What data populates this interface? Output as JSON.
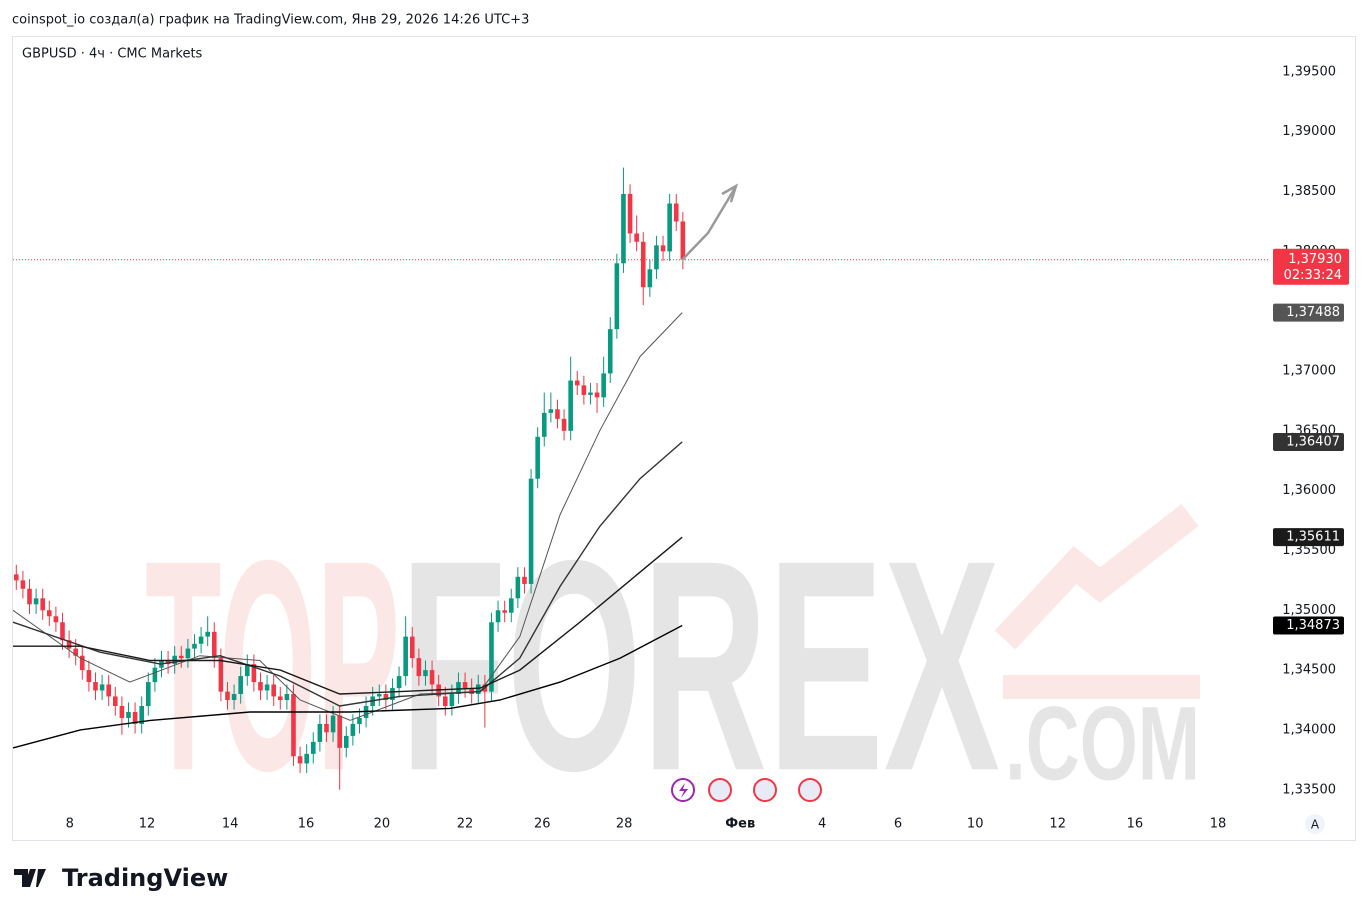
{
  "chart_data": {
    "type": "candlestick",
    "header": "coinspot_io создал(а) график на TradingView.com, Янв 29, 2026 14:26 UTC+3",
    "title": "GBPUSD · 4ч · CMC Markets",
    "logo": "TradingView",
    "auto_button": "A",
    "watermark": {
      "top": "TOP",
      "forex": "FOREX",
      "com": ".COM"
    },
    "ylim": [
      1.3308,
      1.398
    ],
    "yticks": [
      {
        "value": 1.395,
        "label": "1,39500"
      },
      {
        "value": 1.39,
        "label": "1,39000"
      },
      {
        "value": 1.385,
        "label": "1,38500"
      },
      {
        "value": 1.38,
        "label": "1,38000"
      },
      {
        "value": 1.375,
        "label": "1,37500"
      },
      {
        "value": 1.37,
        "label": "1,37000"
      },
      {
        "value": 1.365,
        "label": "1,36500"
      },
      {
        "value": 1.36,
        "label": "1,36000"
      },
      {
        "value": 1.355,
        "label": "1,35500"
      },
      {
        "value": 1.35,
        "label": "1,35000"
      },
      {
        "value": 1.345,
        "label": "1,34500"
      },
      {
        "value": 1.34,
        "label": "1,34000"
      },
      {
        "value": 1.335,
        "label": "1,33500"
      }
    ],
    "xlim": [
      0,
      193.5
    ],
    "xticks": [
      {
        "value": 8.6,
        "label": "8"
      },
      {
        "value": 20.3,
        "label": "12"
      },
      {
        "value": 32.9,
        "label": "14"
      },
      {
        "value": 44.4,
        "label": "16"
      },
      {
        "value": 55.9,
        "label": "20"
      },
      {
        "value": 68.5,
        "label": "22"
      },
      {
        "value": 80.2,
        "label": "26"
      },
      {
        "value": 92.6,
        "label": "28"
      },
      {
        "value": 110.2,
        "label": "Фев"
      },
      {
        "value": 122.6,
        "label": "4"
      },
      {
        "value": 134.1,
        "label": "6"
      },
      {
        "value": 145.8,
        "label": "10"
      },
      {
        "value": 158.3,
        "label": "12"
      },
      {
        "value": 170.0,
        "label": "16"
      },
      {
        "value": 182.6,
        "label": "18"
      }
    ],
    "up_color": "#089981",
    "down_color": "#f23645",
    "ohlc": [
      [
        1.353,
        1.3538,
        1.3517,
        1.3525
      ],
      [
        1.3525,
        1.3533,
        1.351,
        1.3518
      ],
      [
        1.3518,
        1.3526,
        1.3497,
        1.3505
      ],
      [
        1.3505,
        1.3518,
        1.3497,
        1.351
      ],
      [
        1.351,
        1.3518,
        1.3492,
        1.35
      ],
      [
        1.35,
        1.3508,
        1.3487,
        1.3495
      ],
      [
        1.3495,
        1.3503,
        1.3482,
        1.349
      ],
      [
        1.349,
        1.3498,
        1.3467,
        1.3475
      ],
      [
        1.3475,
        1.3483,
        1.346,
        1.3468
      ],
      [
        1.3468,
        1.3476,
        1.3454,
        1.3462
      ],
      [
        1.3462,
        1.347,
        1.3442,
        1.345
      ],
      [
        1.345,
        1.3458,
        1.3432,
        1.344
      ],
      [
        1.344,
        1.3448,
        1.3425,
        1.3433
      ],
      [
        1.3433,
        1.3446,
        1.3425,
        1.3438
      ],
      [
        1.3438,
        1.3446,
        1.342,
        1.3428
      ],
      [
        1.3428,
        1.3436,
        1.3412,
        1.342
      ],
      [
        1.342,
        1.3428,
        1.3396,
        1.341
      ],
      [
        1.341,
        1.3423,
        1.3402,
        1.3415
      ],
      [
        1.3415,
        1.3423,
        1.3397,
        1.3405
      ],
      [
        1.3405,
        1.3428,
        1.3397,
        1.342
      ],
      [
        1.342,
        1.3448,
        1.3412,
        1.344
      ],
      [
        1.344,
        1.346,
        1.3432,
        1.3452
      ],
      [
        1.3452,
        1.3466,
        1.3444,
        1.3458
      ],
      [
        1.3458,
        1.3466,
        1.3447,
        1.3455
      ],
      [
        1.3455,
        1.347,
        1.3447,
        1.3462
      ],
      [
        1.3462,
        1.347,
        1.3452,
        1.346
      ],
      [
        1.346,
        1.3476,
        1.3452,
        1.3468
      ],
      [
        1.3468,
        1.348,
        1.346,
        1.3472
      ],
      [
        1.3472,
        1.3486,
        1.3464,
        1.3478
      ],
      [
        1.3478,
        1.3495,
        1.347,
        1.3482
      ],
      [
        1.3482,
        1.349,
        1.3452,
        1.346
      ],
      [
        1.346,
        1.3468,
        1.3424,
        1.3432
      ],
      [
        1.3432,
        1.344,
        1.3417,
        1.3425
      ],
      [
        1.3425,
        1.3438,
        1.3417,
        1.343
      ],
      [
        1.343,
        1.3453,
        1.3422,
        1.3445
      ],
      [
        1.3445,
        1.3463,
        1.3437,
        1.3455
      ],
      [
        1.3455,
        1.3463,
        1.3432,
        1.344
      ],
      [
        1.344,
        1.3448,
        1.3425,
        1.3433
      ],
      [
        1.3433,
        1.3446,
        1.3425,
        1.3438
      ],
      [
        1.3438,
        1.3446,
        1.342,
        1.3428
      ],
      [
        1.3428,
        1.3436,
        1.3417,
        1.3425
      ],
      [
        1.3425,
        1.3438,
        1.3417,
        1.343
      ],
      [
        1.343,
        1.3438,
        1.337,
        1.3378
      ],
      [
        1.3378,
        1.3386,
        1.3364,
        1.3372
      ],
      [
        1.3372,
        1.3388,
        1.3364,
        1.338
      ],
      [
        1.338,
        1.3398,
        1.3372,
        1.339
      ],
      [
        1.339,
        1.3413,
        1.3382,
        1.3405
      ],
      [
        1.3405,
        1.3413,
        1.339,
        1.3398
      ],
      [
        1.3398,
        1.342,
        1.339,
        1.3412
      ],
      [
        1.3412,
        1.342,
        1.335,
        1.3385
      ],
      [
        1.3385,
        1.3403,
        1.3377,
        1.3395
      ],
      [
        1.3395,
        1.3413,
        1.3387,
        1.3405
      ],
      [
        1.3405,
        1.3418,
        1.3397,
        1.341
      ],
      [
        1.341,
        1.3428,
        1.3402,
        1.342
      ],
      [
        1.342,
        1.3436,
        1.3412,
        1.3428
      ],
      [
        1.3428,
        1.3438,
        1.342,
        1.343
      ],
      [
        1.343,
        1.3438,
        1.3417,
        1.3425
      ],
      [
        1.3425,
        1.3443,
        1.3417,
        1.3435
      ],
      [
        1.3435,
        1.3453,
        1.3427,
        1.3445
      ],
      [
        1.3445,
        1.3495,
        1.3437,
        1.3478
      ],
      [
        1.3478,
        1.3486,
        1.3452,
        1.346
      ],
      [
        1.346,
        1.3468,
        1.3437,
        1.3445
      ],
      [
        1.3445,
        1.3458,
        1.3437,
        1.345
      ],
      [
        1.345,
        1.3458,
        1.343,
        1.3438
      ],
      [
        1.3438,
        1.3446,
        1.342,
        1.3428
      ],
      [
        1.3428,
        1.3436,
        1.3412,
        1.342
      ],
      [
        1.342,
        1.3438,
        1.3412,
        1.343
      ],
      [
        1.343,
        1.3448,
        1.3422,
        1.344
      ],
      [
        1.344,
        1.3448,
        1.3427,
        1.3435
      ],
      [
        1.3435,
        1.3443,
        1.3422,
        1.343
      ],
      [
        1.343,
        1.3446,
        1.3422,
        1.3438
      ],
      [
        1.3438,
        1.3446,
        1.3402,
        1.3432
      ],
      [
        1.3432,
        1.3498,
        1.3424,
        1.349
      ],
      [
        1.349,
        1.3508,
        1.3482,
        1.35
      ],
      [
        1.35,
        1.3508,
        1.349,
        1.3498
      ],
      [
        1.3498,
        1.3518,
        1.349,
        1.351
      ],
      [
        1.351,
        1.3536,
        1.3502,
        1.3528
      ],
      [
        1.3528,
        1.3536,
        1.3514,
        1.3522
      ],
      [
        1.3522,
        1.3618,
        1.3514,
        1.361
      ],
      [
        1.361,
        1.3653,
        1.3602,
        1.3645
      ],
      [
        1.3645,
        1.3682,
        1.3637,
        1.3665
      ],
      [
        1.3665,
        1.3682,
        1.3657,
        1.3668
      ],
      [
        1.3668,
        1.3676,
        1.3652,
        1.366
      ],
      [
        1.366,
        1.3668,
        1.3642,
        1.365
      ],
      [
        1.365,
        1.3712,
        1.3642,
        1.3692
      ],
      [
        1.3692,
        1.37,
        1.368,
        1.3688
      ],
      [
        1.3688,
        1.3696,
        1.3672,
        1.368
      ],
      [
        1.368,
        1.369,
        1.3672,
        1.3682
      ],
      [
        1.3682,
        1.369,
        1.3665,
        1.3678
      ],
      [
        1.3678,
        1.3712,
        1.367,
        1.3698
      ],
      [
        1.3698,
        1.3745,
        1.369,
        1.3735
      ],
      [
        1.3735,
        1.3798,
        1.3727,
        1.379
      ],
      [
        1.379,
        1.387,
        1.3782,
        1.3848
      ],
      [
        1.3848,
        1.3856,
        1.3807,
        1.3815
      ],
      [
        1.3815,
        1.383,
        1.38,
        1.3808
      ],
      [
        1.3808,
        1.3816,
        1.3755,
        1.377
      ],
      [
        1.377,
        1.3793,
        1.3762,
        1.3785
      ],
      [
        1.3785,
        1.3813,
        1.3777,
        1.3805
      ],
      [
        1.3805,
        1.3813,
        1.3792,
        1.38
      ],
      [
        1.38,
        1.3848,
        1.3792,
        1.384
      ],
      [
        1.384,
        1.3848,
        1.3817,
        1.3825
      ],
      [
        1.3825,
        1.3833,
        1.3785,
        1.3793
      ]
    ],
    "series": [
      {
        "color": "#555555",
        "last_label": "1,37488",
        "x": [
          0,
          10.2,
          17.7,
          28.3,
          37.4,
          43.5,
          51.1,
          61.7,
          70.8,
          76.8,
          82.9,
          88.9,
          95,
          101.4
        ],
        "values": [
          1.35,
          1.346,
          1.344,
          1.3462,
          1.3458,
          1.3425,
          1.3408,
          1.343,
          1.3432,
          1.3478,
          1.358,
          1.365,
          1.3712,
          1.37488
        ]
      },
      {
        "color": "#333333",
        "last_label": "1,36407",
        "x": [
          0,
          13.2,
          22.3,
          31.4,
          40.5,
          49.5,
          58.6,
          70.8,
          76.8,
          82.9,
          88.9,
          95,
          101.4
        ],
        "values": [
          1.349,
          1.3465,
          1.3455,
          1.3462,
          1.3445,
          1.342,
          1.3428,
          1.3432,
          1.346,
          1.352,
          1.357,
          1.361,
          1.36407
        ]
      },
      {
        "color": "#1a1a1a",
        "last_label": "1,35611",
        "x": [
          0,
          10.2,
          20.8,
          31.4,
          40.5,
          49.5,
          58.6,
          70.8,
          76.8,
          85.9,
          93.5,
          101.4
        ],
        "values": [
          1.347,
          1.347,
          1.3458,
          1.3458,
          1.345,
          1.343,
          1.3432,
          1.3435,
          1.345,
          1.349,
          1.3525,
          1.35611
        ]
      },
      {
        "color": "#000000",
        "last_label": "1,34873",
        "x": [
          0,
          10.2,
          20.8,
          35.9,
          51.1,
          66.2,
          73.8,
          82.9,
          92,
          101.4
        ],
        "values": [
          1.3385,
          1.34,
          1.3408,
          1.3415,
          1.3415,
          1.3418,
          1.3425,
          1.344,
          1.346,
          1.34873
        ]
      }
    ],
    "price": {
      "value": 1.3793,
      "label": "1,37930",
      "timer": "02:33:24",
      "color": "#f23645"
    }
  }
}
